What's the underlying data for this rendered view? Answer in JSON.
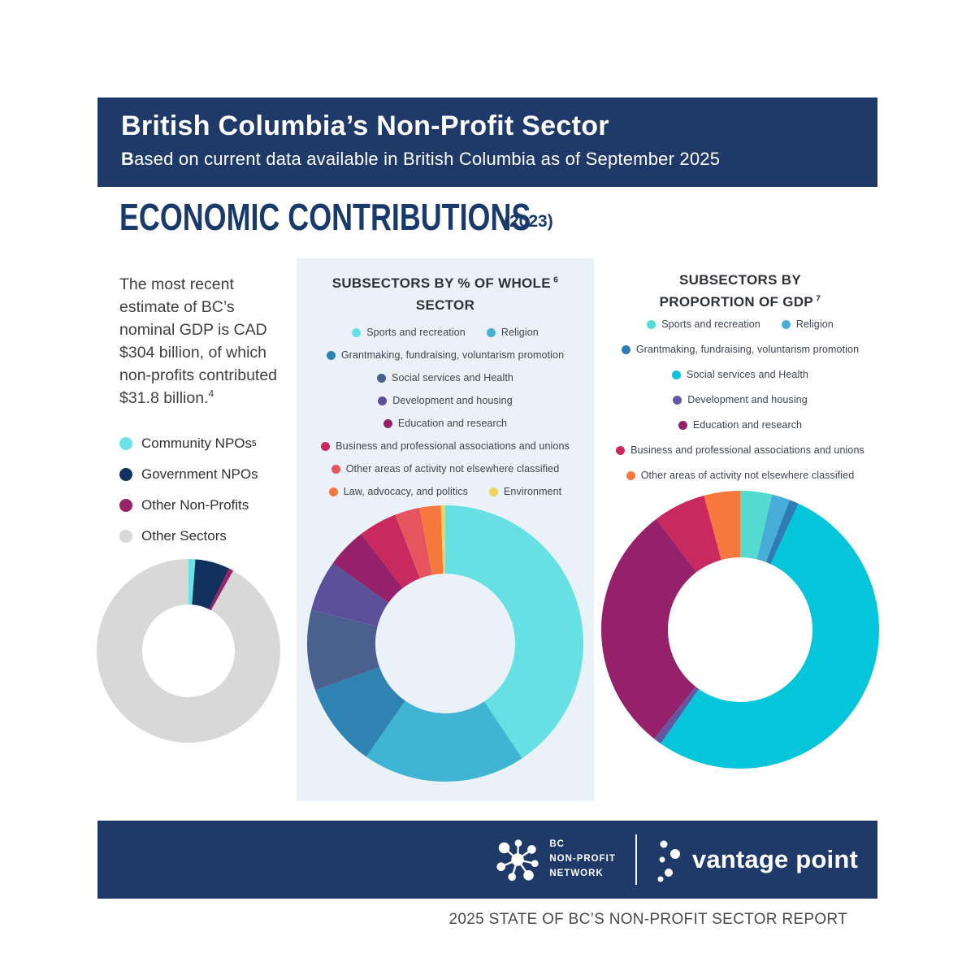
{
  "header": {
    "title": "British Columbia’s Non-Profit Sector",
    "subtitle_lead": "B",
    "subtitle_rest": "ased on current data available in British Columbia as of September 2025"
  },
  "section": {
    "title": "ECONOMIC CONTRIBUTIONS",
    "year": "(2023)"
  },
  "intro": {
    "text": "The most recent estimate of BC’s nominal GDP is CAD $304 billion, of which non-profits contributed $31.8 billion.",
    "footnote": "4"
  },
  "colors": {
    "navy": "#1F3A68",
    "title_navy": "#1B3A6C",
    "panel_bg": "#EAF1F9"
  },
  "chart_data": [
    {
      "id": "gdp-share-donut",
      "type": "donut",
      "title": "",
      "legend_position": "left-vertical",
      "labels": [
        "Community NPOs",
        "Government NPOs",
        "Other Non-Profits",
        "Other Sectors"
      ],
      "label_sups": {
        "0": "5"
      },
      "values": [
        1.2,
        6.1,
        0.8,
        91.9
      ],
      "unit": "percent of BC nominal GDP",
      "colors": [
        "#6BE2E6",
        "#12315F",
        "#992268",
        "#D8D8D8"
      ]
    },
    {
      "id": "subsectors-by-percent-donut",
      "type": "donut",
      "title_lines": [
        {
          "text": "SUBSECTORS BY % OF WHOLE",
          "sup": "6"
        },
        {
          "text": "SECTOR"
        }
      ],
      "legend_position": "top-center",
      "labels": [
        "Sports and recreation",
        "Religion",
        "Grantmaking, fundraising, voluntarism promotion",
        "Social services and Health",
        "Development and housing",
        "Education and research",
        "Business and professional associations and unions",
        "Other areas of activity not elsewhere classified",
        "Law, advocacy, and politics",
        "Environment"
      ],
      "values": [
        40.6,
        19.1,
        9.8,
        9.4,
        6.0,
        4.7,
        4.5,
        2.9,
        2.5,
        0.5
      ],
      "unit": "percent of whole sector",
      "colors": [
        "#67E0E3",
        "#3FB4D3",
        "#2E83B3",
        "#4A6190",
        "#5C509A",
        "#96216B",
        "#C9295E",
        "#E4555E",
        "#F8773F",
        "#EDD45F"
      ],
      "legend_rows": [
        [
          0,
          1
        ],
        [
          2
        ],
        [
          3
        ],
        [
          4
        ],
        [
          5
        ],
        [
          6
        ],
        [
          7
        ],
        [
          8,
          9
        ]
      ]
    },
    {
      "id": "subsectors-by-gdp-donut",
      "type": "donut",
      "title_lines": [
        {
          "text": "SUBSECTORS BY"
        },
        {
          "text": "PROPORTION OF GDP",
          "sup": "7"
        }
      ],
      "legend_position": "top-center",
      "labels": [
        "Sports and recreation",
        "Religion",
        "Grantmaking, fundraising, voluntarism promotion",
        "Social services and Health",
        "Development and housing",
        "Education and research",
        "Business and professional associations and unions",
        "Other areas of activity not elsewhere classified"
      ],
      "values": [
        3.7,
        2.1,
        1.1,
        52.8,
        0.9,
        29.1,
        6.1,
        4.2
      ],
      "unit": "percent of non-profit GDP",
      "colors": [
        "#52DBCE",
        "#47ACD8",
        "#2E7CB5",
        "#04C5D9",
        "#6058A0",
        "#96216B",
        "#C9295E",
        "#F8773F"
      ],
      "legend_rows": [
        [
          0,
          1
        ],
        [
          2
        ],
        [
          3
        ],
        [
          4
        ],
        [
          5
        ],
        [
          6
        ],
        [
          7
        ]
      ]
    }
  ],
  "footer": {
    "network_logo_lines": [
      "BC",
      "NON-PROFIT",
      "NETWORK"
    ],
    "partner_logo_text": "vantage point",
    "caption": "2025 STATE OF BC’S NON-PROFIT SECTOR REPORT"
  }
}
